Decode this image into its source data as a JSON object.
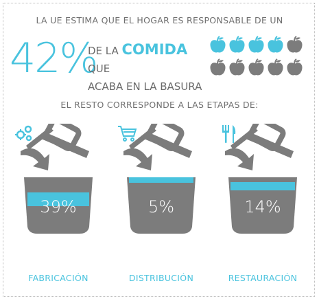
{
  "header": {
    "line1": "LA UE ESTIMA QUE EL HOGAR ES RESPONSABLE DE UN"
  },
  "headline": {
    "percent": "42%",
    "line_a_prefix": "DE LA",
    "line_a_accent": "COMIDA",
    "line_a_suffix": "QUE",
    "line_b": "ACABA EN LA BASURA"
  },
  "apples": {
    "total": 10,
    "highlighted": 4,
    "color_highlight": "#49c3de",
    "color_default": "#7c7c7c"
  },
  "subheader": "EL RESTO CORRESPONDE A LAS ETAPAS DE:",
  "stages": [
    {
      "percent": "39%",
      "label": "FABRICACIÓN",
      "icon": "gears-icon",
      "fill_fraction": 0.39
    },
    {
      "percent": "5%",
      "label": "DISTRIBUCIÓN",
      "icon": "shopping-cart-icon",
      "fill_fraction": 0.05
    },
    {
      "percent": "14%",
      "label": "RESTAURACIÓN",
      "icon": "fork-knife-icon",
      "fill_fraction": 0.14
    }
  ],
  "colors": {
    "accent": "#49c3de",
    "gray": "#7c7c7c",
    "text": "#6f6f6f"
  }
}
